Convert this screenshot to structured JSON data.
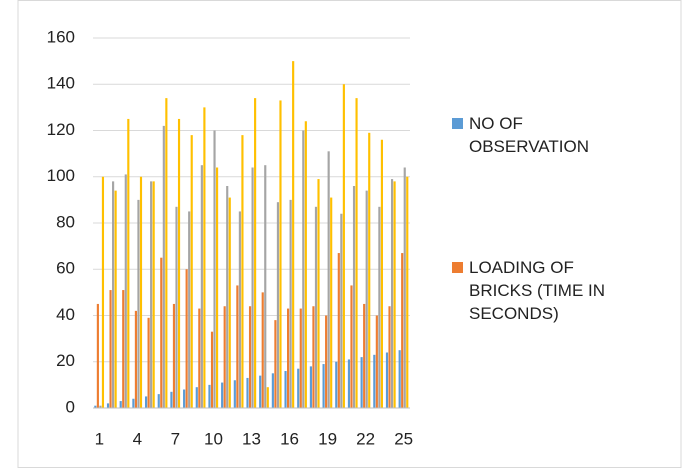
{
  "chart_data": {
    "type": "bar",
    "categories": [
      1,
      null,
      null,
      4,
      null,
      null,
      7,
      null,
      null,
      10,
      null,
      null,
      13,
      null,
      null,
      16,
      null,
      null,
      19,
      null,
      null,
      22,
      null,
      null,
      25
    ],
    "series": [
      {
        "name": "NO OF OBSERVATION",
        "color": "#5b9bd5",
        "values": [
          1,
          2,
          3,
          4,
          5,
          6,
          7,
          8,
          9,
          10,
          11,
          12,
          13,
          14,
          15,
          16,
          17,
          18,
          19,
          20,
          21,
          22,
          23,
          24,
          25
        ]
      },
      {
        "name": "LOADING OF BRICKS (TIME IN SECONDS)",
        "color": "#ed7d31",
        "values": [
          45,
          51,
          51,
          42,
          39,
          65,
          45,
          60,
          43,
          33,
          44,
          53,
          44,
          50,
          38,
          43,
          43,
          44,
          40,
          67,
          53,
          45,
          40,
          44,
          67
        ]
      },
      {
        "color": "#a5a5a5",
        "values": [
          1,
          98,
          101,
          90,
          98,
          122,
          87,
          85,
          105,
          120,
          96,
          85,
          104,
          105,
          89,
          90,
          120,
          87,
          111,
          84,
          96,
          94,
          87,
          99,
          104
        ]
      },
      {
        "color": "#ffc000",
        "values": [
          100,
          94,
          125,
          100,
          98,
          134,
          125,
          118,
          130,
          104,
          91,
          118,
          134,
          9,
          133,
          150,
          124,
          99,
          91,
          140,
          134,
          119,
          116,
          98,
          100
        ]
      }
    ],
    "ylim": [
      0,
      160
    ],
    "yticks": [
      0,
      20,
      40,
      60,
      80,
      100,
      120,
      140,
      160
    ],
    "grid": true,
    "legend": "right"
  }
}
